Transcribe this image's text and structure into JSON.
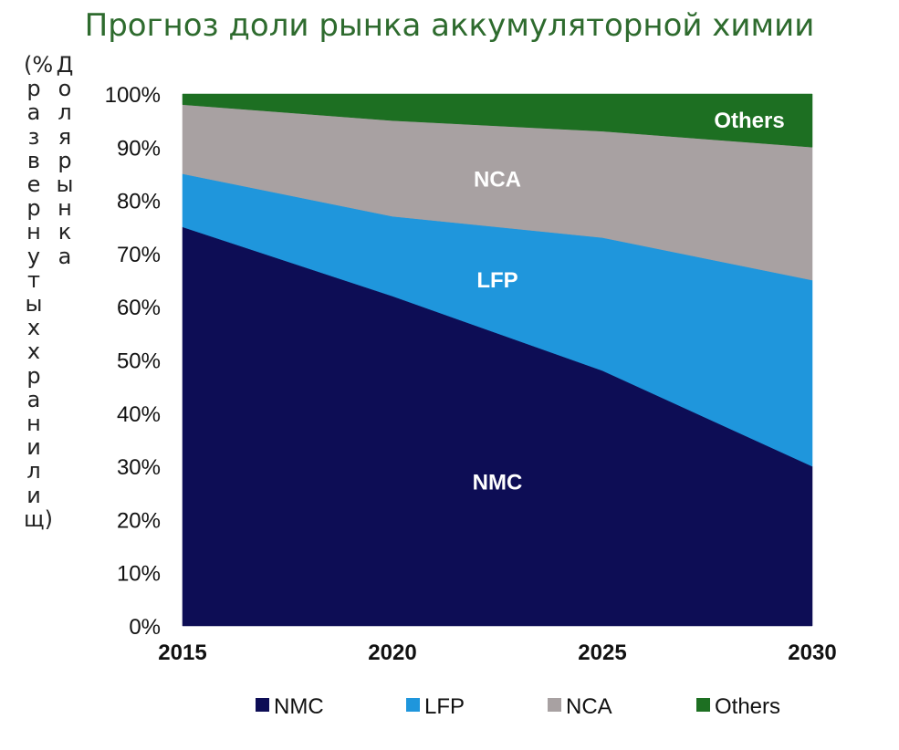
{
  "chart_data": {
    "type": "area",
    "stacked": true,
    "title": "Прогноз доли рынка аккумуляторной химии",
    "ylabel_outer": "(%развернутыххранилищ)",
    "ylabel_inner": "Долярынка",
    "x": [
      2015,
      2020,
      2025,
      2030
    ],
    "x_tick_labels": [
      "2015",
      "2020",
      "2025",
      "2030"
    ],
    "ylim": [
      0,
      100
    ],
    "y_tick_values": [
      0,
      10,
      20,
      30,
      40,
      50,
      60,
      70,
      80,
      90,
      100
    ],
    "y_tick_labels": [
      "0%",
      "10%",
      "20%",
      "30%",
      "40%",
      "50%",
      "60%",
      "70%",
      "80%",
      "90%",
      "100%"
    ],
    "series": [
      {
        "name": "NMC",
        "values": [
          75,
          62,
          48,
          30
        ],
        "color": "#0d0d55"
      },
      {
        "name": "LFP",
        "values": [
          10,
          15,
          25,
          35
        ],
        "color": "#1f96dc"
      },
      {
        "name": "NCA",
        "values": [
          13,
          18,
          20,
          25
        ],
        "color": "#a8a1a2"
      },
      {
        "name": "Others",
        "values": [
          2,
          5,
          7,
          10
        ],
        "color": "#1d6f22"
      }
    ],
    "area_labels": [
      {
        "series": "NMC",
        "text": "NMC",
        "x": 2022.5,
        "y": 27
      },
      {
        "series": "LFP",
        "text": "LFP",
        "x": 2022.5,
        "y": 65
      },
      {
        "series": "NCA",
        "text": "NCA",
        "x": 2022.5,
        "y": 84
      },
      {
        "series": "Others",
        "text": "Others",
        "x": 2028.5,
        "y": 95
      }
    ],
    "legend": {
      "position": "bottom",
      "items": [
        "NMC",
        "LFP",
        "NCA",
        "Others"
      ]
    },
    "grid": false
  }
}
